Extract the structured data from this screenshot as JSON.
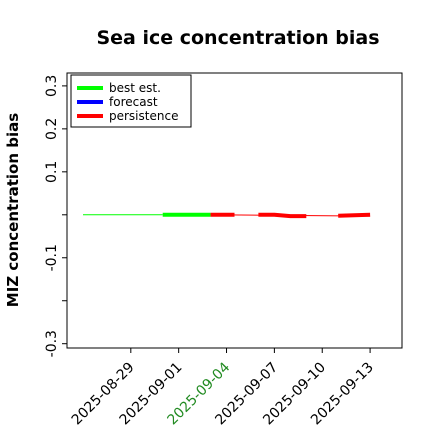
{
  "chart_data": {
    "type": "line",
    "title": "Sea ice concentration bias",
    "ylabel": "MIZ concentration bias",
    "xlabel": "",
    "ylim": [
      -0.31,
      0.33
    ],
    "yticks": [
      -0.3,
      -0.2,
      -0.1,
      0,
      0.1,
      0.2,
      0.3
    ],
    "ytick_labels": [
      "-0.3",
      "",
      "-0.1",
      "",
      "0.1",
      "0.2",
      "0.3"
    ],
    "xlim": [
      "2025-08-25",
      "2025-09-15"
    ],
    "xticks": [
      "2025-08-29",
      "2025-09-01",
      "2025-09-04",
      "2025-09-07",
      "2025-09-10",
      "2025-09-13"
    ],
    "xtick_colors": [
      "#000000",
      "#000000",
      "#228b22",
      "#000000",
      "#000000",
      "#000000"
    ],
    "legend": {
      "placement": "top-left"
    },
    "series": [
      {
        "name": "best est.",
        "color": "#00ff00",
        "segments": [
          {
            "x": [
              "2025-08-26",
              "2025-08-31"
            ],
            "y": [
              0.0,
              0.0
            ],
            "width": "thin"
          },
          {
            "x": [
              "2025-08-31",
              "2025-09-03"
            ],
            "y": [
              0.0,
              0.0
            ],
            "width": "thick"
          }
        ]
      },
      {
        "name": "forecast",
        "color": "#0000ff",
        "segments": []
      },
      {
        "name": "persistence",
        "color": "#ff0000",
        "segments": [
          {
            "x": [
              "2025-09-03",
              "2025-09-13"
            ],
            "y": [
              0.0,
              -0.003
            ],
            "width": "thin"
          },
          {
            "x": [
              "2025-09-03",
              "2025-09-04.5"
            ],
            "y": [
              0.0,
              0.0
            ],
            "width": "thick"
          },
          {
            "x": [
              "2025-09-06",
              "2025-09-07",
              "2025-09-08",
              "2025-09-09"
            ],
            "y": [
              0.0,
              0.0,
              -0.003,
              -0.003
            ],
            "width": "thick"
          },
          {
            "x": [
              "2025-09-11",
              "2025-09-12",
              "2025-09-13"
            ],
            "y": [
              -0.002,
              -0.001,
              0.0
            ],
            "width": "thick"
          }
        ]
      }
    ]
  }
}
